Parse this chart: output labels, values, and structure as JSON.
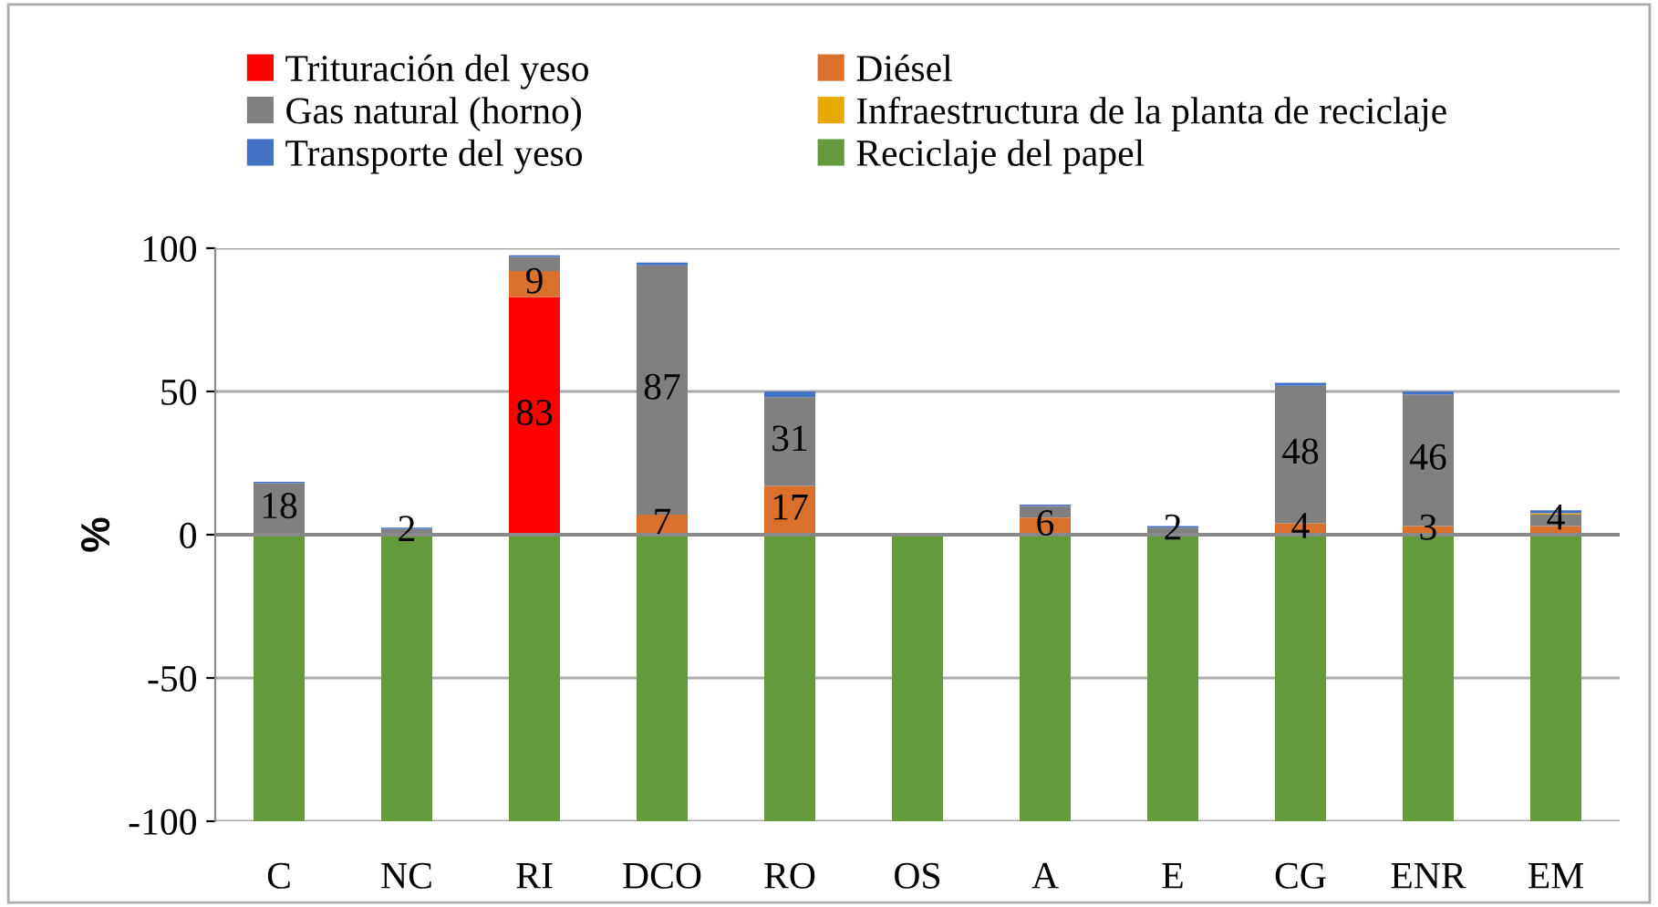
{
  "chart_data": {
    "type": "bar",
    "stacked": true,
    "ylabel": "%",
    "categories": [
      "C",
      "NC",
      "RI",
      "DCO",
      "RO",
      "OS",
      "A",
      "E",
      "CG",
      "ENR",
      "EM"
    ],
    "series": [
      {
        "name": "Trituración del yeso",
        "color": "#ff0000",
        "values": [
          0,
          0,
          83,
          0,
          0,
          0,
          0,
          0,
          0,
          0,
          0
        ],
        "value_labels": [
          null,
          null,
          "83",
          null,
          null,
          null,
          null,
          null,
          null,
          null,
          null
        ]
      },
      {
        "name": "Diésel",
        "color": "#d9712c",
        "values": [
          null,
          0,
          9,
          7,
          17,
          0,
          6,
          0.5,
          4,
          3,
          3
        ],
        "value_labels": [
          null,
          null,
          "9",
          "7",
          "17",
          null,
          "6",
          null,
          "4",
          "3",
          null
        ]
      },
      {
        "name": "Gas natural (horno)",
        "color": "#808080",
        "values": [
          18,
          2,
          5,
          87,
          31,
          0,
          4,
          2,
          48,
          46,
          4
        ],
        "value_labels": [
          "18",
          "2",
          null,
          "87",
          "31",
          null,
          null,
          "2",
          "48",
          "46",
          "4"
        ]
      },
      {
        "name": "Infraestructura de la planta de reciclaje",
        "color": "#e6a900",
        "values": [
          0,
          0,
          0,
          0,
          0,
          0,
          0,
          0,
          0,
          0,
          0.5
        ]
      },
      {
        "name": "Transporte del yeso",
        "color": "#4472c4",
        "values": [
          0.5,
          0.5,
          0.5,
          1,
          2,
          0,
          0.5,
          0.5,
          1,
          1,
          1
        ]
      },
      {
        "name": "Reciclaje del papel",
        "color": "#64993c",
        "values": [
          -100,
          -100,
          -100,
          -100,
          -100,
          -100,
          -100,
          -100,
          -100,
          -100,
          -100
        ]
      }
    ],
    "ylim": [
      -100,
      100
    ],
    "yticks": [
      -100,
      -50,
      0,
      50,
      100
    ],
    "grid": "y",
    "legend": "top"
  }
}
